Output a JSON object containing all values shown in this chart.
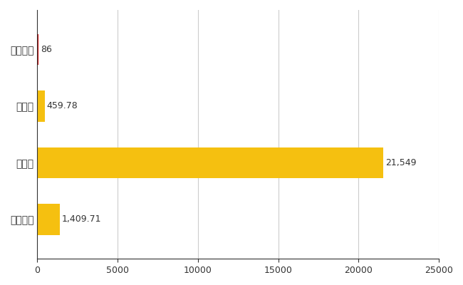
{
  "categories": [
    "ニセコ町",
    "県平均",
    "県最大",
    "全国平均"
  ],
  "values": [
    86,
    459.78,
    21549,
    1409.71
  ],
  "bar_colors": [
    "#cc0000",
    "#F5C010",
    "#F5C010",
    "#F5C010"
  ],
  "value_labels": [
    "86",
    "459.78",
    "21,549",
    "1,409.71"
  ],
  "xlim": [
    0,
    25000
  ],
  "xticks": [
    0,
    5000,
    10000,
    15000,
    20000,
    25000
  ],
  "xtick_labels": [
    "0",
    "5000",
    "10000",
    "15000",
    "20000",
    "25000"
  ],
  "background_color": "#ffffff",
  "grid_color": "#cccccc",
  "bar_height": 0.55,
  "label_color": "#333333",
  "label_fontsize": 9
}
